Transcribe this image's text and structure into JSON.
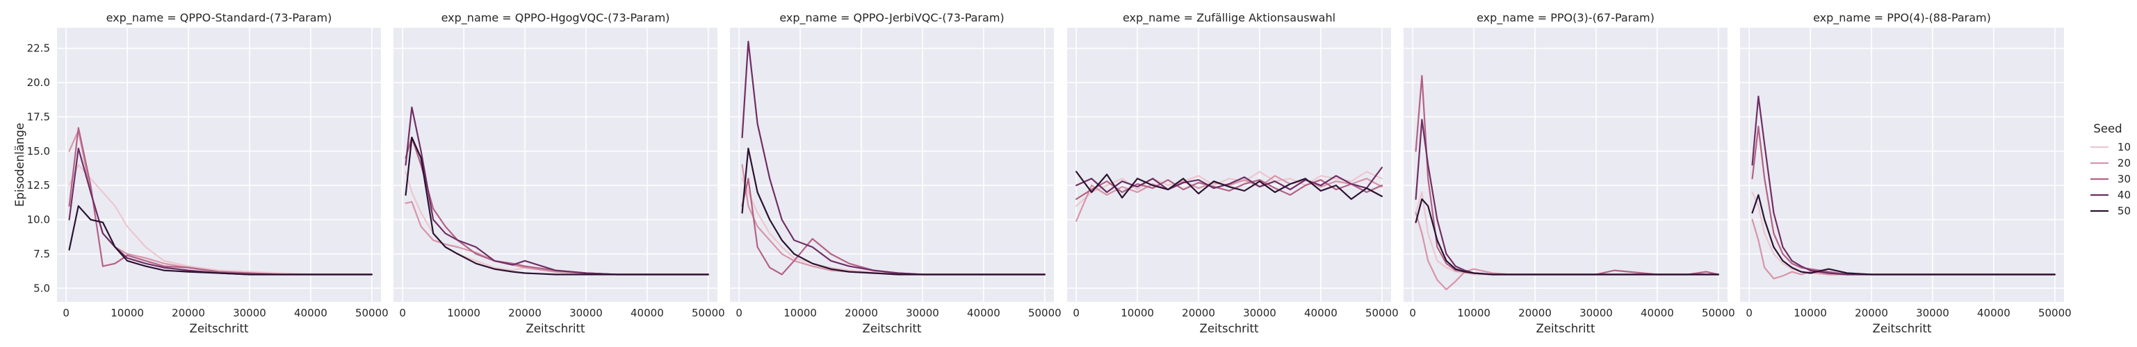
{
  "figure": {
    "xlabel": "Zeitschritt",
    "ylabel": "Episodenlänge"
  },
  "legend": {
    "title": "Seed",
    "entries": [
      {
        "label": "10",
        "color": "#ecc7cf"
      },
      {
        "label": "20",
        "color": "#d794a8"
      },
      {
        "label": "30",
        "color": "#b36285"
      },
      {
        "label": "40",
        "color": "#6e2e64"
      },
      {
        "label": "50",
        "color": "#2a1231"
      }
    ],
    "placement": "right"
  },
  "chart_data": [
    {
      "type": "line",
      "title": "exp_name = QPPO-Standard-(73-Param)",
      "xlabel": "Zeitschritt",
      "ylabel": "Episodenlänge",
      "xlim": [
        -1500,
        51500
      ],
      "ylim": [
        4.0,
        24.0
      ],
      "xticks": [
        0,
        10000,
        20000,
        30000,
        40000,
        50000
      ],
      "yticks": [
        5.0,
        7.5,
        10.0,
        12.5,
        15.0,
        17.5,
        20.0,
        22.5
      ],
      "grid": true,
      "x": [
        500,
        2000,
        4000,
        6000,
        8000,
        10000,
        13000,
        16000,
        20000,
        25000,
        30000,
        35000,
        40000,
        45000,
        50000
      ],
      "series": [
        {
          "name": "10",
          "values": [
            12.5,
            14.0,
            13.0,
            12.0,
            11.0,
            9.5,
            8.0,
            7.0,
            6.6,
            6.3,
            6.2,
            6.1,
            6.0,
            6.0,
            6.0
          ]
        },
        {
          "name": "20",
          "values": [
            15.0,
            16.5,
            12.0,
            9.0,
            8.0,
            7.5,
            7.2,
            6.8,
            6.5,
            6.2,
            6.1,
            6.0,
            6.0,
            6.0,
            6.0
          ]
        },
        {
          "name": "30",
          "values": [
            11.0,
            16.7,
            12.5,
            6.6,
            6.8,
            7.4,
            7.0,
            6.6,
            6.5,
            6.2,
            6.1,
            6.0,
            6.0,
            6.0,
            6.0
          ]
        },
        {
          "name": "40",
          "values": [
            10.0,
            15.2,
            12.0,
            9.0,
            8.0,
            7.2,
            6.8,
            6.5,
            6.3,
            6.1,
            6.0,
            6.0,
            6.0,
            6.0,
            6.0
          ]
        },
        {
          "name": "50",
          "values": [
            7.8,
            11.0,
            10.0,
            9.8,
            8.0,
            7.0,
            6.6,
            6.3,
            6.2,
            6.1,
            6.0,
            6.0,
            6.0,
            6.0,
            6.0
          ]
        }
      ]
    },
    {
      "type": "line",
      "title": "exp_name = QPPO-HgogVQC-(73-Param)",
      "xlabel": "Zeitschritt",
      "ylabel": "",
      "xlim": [
        -1500,
        51500
      ],
      "ylim": [
        4.0,
        24.0
      ],
      "xticks": [
        0,
        10000,
        20000,
        30000,
        40000,
        50000
      ],
      "yticks": [
        5.0,
        7.5,
        10.0,
        12.5,
        15.0,
        17.5,
        20.0,
        22.5
      ],
      "grid": true,
      "x": [
        500,
        1500,
        3000,
        5000,
        7000,
        9000,
        12000,
        15000,
        18000,
        20000,
        25000,
        30000,
        35000,
        40000,
        45000,
        50000
      ],
      "series": [
        {
          "name": "10",
          "values": [
            13.5,
            12.0,
            10.5,
            9.0,
            8.0,
            7.5,
            7.0,
            6.5,
            6.3,
            6.5,
            6.2,
            6.1,
            6.0,
            6.0,
            6.0,
            6.0
          ]
        },
        {
          "name": "20",
          "values": [
            11.2,
            11.3,
            9.5,
            8.5,
            8.2,
            8.0,
            7.6,
            7.0,
            6.7,
            6.5,
            6.2,
            6.1,
            6.0,
            6.0,
            6.0,
            6.0
          ]
        },
        {
          "name": "30",
          "values": [
            14.5,
            16.0,
            14.0,
            10.8,
            9.5,
            8.5,
            7.5,
            7.0,
            6.8,
            6.6,
            6.3,
            6.1,
            6.0,
            6.0,
            6.0,
            6.0
          ]
        },
        {
          "name": "40",
          "values": [
            14.0,
            18.2,
            15.0,
            10.0,
            9.0,
            8.5,
            8.0,
            7.0,
            6.7,
            7.0,
            6.3,
            6.1,
            6.0,
            6.0,
            6.0,
            6.0
          ]
        },
        {
          "name": "50",
          "values": [
            11.8,
            16.0,
            14.5,
            9.0,
            8.0,
            7.5,
            6.8,
            6.4,
            6.2,
            6.1,
            6.0,
            6.0,
            6.0,
            6.0,
            6.0,
            6.0
          ]
        }
      ]
    },
    {
      "type": "line",
      "title": "exp_name = QPPO-JerbiVQC-(73-Param)",
      "xlabel": "Zeitschritt",
      "ylabel": "",
      "xlim": [
        -1500,
        51500
      ],
      "ylim": [
        4.0,
        24.0
      ],
      "xticks": [
        0,
        10000,
        20000,
        30000,
        40000,
        50000
      ],
      "yticks": [
        5.0,
        7.5,
        10.0,
        12.5,
        15.0,
        17.5,
        20.0,
        22.5
      ],
      "grid": true,
      "x": [
        500,
        1500,
        3000,
        5000,
        7000,
        9000,
        12000,
        15000,
        18000,
        22000,
        26000,
        30000,
        35000,
        40000,
        45000,
        50000
      ],
      "series": [
        {
          "name": "10",
          "values": [
            13.0,
            12.0,
            10.5,
            9.0,
            8.0,
            7.2,
            6.8,
            6.5,
            6.3,
            6.2,
            6.1,
            6.0,
            6.0,
            6.0,
            6.0,
            6.0
          ]
        },
        {
          "name": "20",
          "values": [
            14.0,
            11.0,
            9.5,
            8.5,
            7.5,
            7.0,
            6.6,
            6.3,
            6.2,
            6.1,
            6.0,
            6.0,
            6.0,
            6.0,
            6.0,
            6.0
          ]
        },
        {
          "name": "30",
          "values": [
            11.0,
            13.0,
            8.0,
            6.5,
            6.0,
            7.0,
            8.6,
            7.5,
            6.8,
            6.3,
            6.1,
            6.0,
            6.0,
            6.0,
            6.0,
            6.0
          ]
        },
        {
          "name": "40",
          "values": [
            16.0,
            23.0,
            17.0,
            13.0,
            10.0,
            8.5,
            8.0,
            7.0,
            6.6,
            6.3,
            6.1,
            6.0,
            6.0,
            6.0,
            6.0,
            6.0
          ]
        },
        {
          "name": "50",
          "values": [
            10.5,
            15.2,
            12.0,
            10.0,
            8.5,
            7.5,
            6.8,
            6.4,
            6.2,
            6.1,
            6.0,
            6.0,
            6.0,
            6.0,
            6.0,
            6.0
          ]
        }
      ]
    },
    {
      "type": "line",
      "title": "exp_name = Zufällige Aktionsauswahl",
      "xlabel": "Zeitschritt",
      "ylabel": "",
      "xlim": [
        -1500,
        51500
      ],
      "ylim": [
        4.0,
        24.0
      ],
      "xticks": [
        0,
        10000,
        20000,
        30000,
        40000,
        50000
      ],
      "yticks": [
        5.0,
        7.5,
        10.0,
        12.5,
        15.0,
        17.5,
        20.0,
        22.5
      ],
      "grid": true,
      "x": [
        0,
        2500,
        5000,
        7500,
        10000,
        12500,
        15000,
        17500,
        20000,
        22500,
        25000,
        27500,
        30000,
        32500,
        35000,
        37500,
        40000,
        42500,
        45000,
        47500,
        50000
      ],
      "series": [
        {
          "name": "10",
          "values": [
            11.0,
            12.0,
            12.5,
            13.0,
            12.2,
            13.0,
            12.5,
            12.8,
            13.2,
            12.5,
            13.0,
            12.8,
            13.5,
            12.8,
            13.0,
            12.5,
            13.2,
            13.0,
            12.8,
            13.5,
            13.0
          ]
        },
        {
          "name": "20",
          "values": [
            9.9,
            12.5,
            11.8,
            12.4,
            12.0,
            12.6,
            12.2,
            12.8,
            12.3,
            12.7,
            12.5,
            12.9,
            12.4,
            13.2,
            12.6,
            12.9,
            12.4,
            12.8,
            12.6,
            13.0,
            12.4
          ]
        },
        {
          "name": "30",
          "values": [
            11.5,
            12.2,
            12.8,
            12.0,
            12.6,
            12.3,
            12.9,
            12.2,
            12.7,
            12.4,
            12.1,
            12.6,
            12.9,
            12.3,
            11.8,
            12.5,
            12.9,
            12.2,
            12.6,
            12.0,
            12.5
          ]
        },
        {
          "name": "40",
          "values": [
            12.5,
            13.0,
            12.0,
            12.8,
            12.4,
            13.0,
            12.2,
            12.7,
            12.9,
            12.3,
            12.6,
            13.1,
            12.4,
            12.8,
            12.2,
            12.9,
            12.5,
            13.2,
            12.6,
            12.3,
            13.8
          ]
        },
        {
          "name": "50",
          "values": [
            13.5,
            12.0,
            13.3,
            11.6,
            13.0,
            12.5,
            12.2,
            13.0,
            11.9,
            12.8,
            12.4,
            12.1,
            12.8,
            12.0,
            12.6,
            13.0,
            12.1,
            12.5,
            11.5,
            12.3,
            11.7
          ]
        }
      ]
    },
    {
      "type": "line",
      "title": "exp_name = PPO(3)-(67-Param)",
      "xlabel": "Zeitschritt",
      "ylabel": "",
      "xlim": [
        -1500,
        51500
      ],
      "ylim": [
        4.0,
        24.0
      ],
      "xticks": [
        0,
        10000,
        20000,
        30000,
        40000,
        50000
      ],
      "yticks": [
        5.0,
        7.5,
        10.0,
        12.5,
        15.0,
        17.5,
        20.0,
        22.5
      ],
      "grid": true,
      "x": [
        500,
        1500,
        2500,
        4000,
        5500,
        7000,
        8500,
        10000,
        13000,
        16000,
        20000,
        25000,
        30000,
        33000,
        40000,
        45000,
        48000,
        50000
      ],
      "series": [
        {
          "name": "10",
          "values": [
            10.5,
            12.0,
            9.0,
            7.0,
            6.5,
            6.2,
            6.1,
            6.0,
            6.0,
            6.0,
            6.0,
            6.0,
            6.0,
            6.0,
            6.0,
            6.0,
            6.0,
            6.0
          ]
        },
        {
          "name": "20",
          "values": [
            10.5,
            9.0,
            7.0,
            5.6,
            4.9,
            5.5,
            6.2,
            6.4,
            6.1,
            6.0,
            6.0,
            6.0,
            6.0,
            6.0,
            6.0,
            6.0,
            6.0,
            6.0
          ]
        },
        {
          "name": "30",
          "values": [
            15.0,
            20.5,
            13.0,
            8.0,
            6.8,
            6.3,
            6.2,
            6.1,
            6.0,
            6.0,
            6.0,
            6.0,
            6.0,
            6.3,
            6.0,
            6.0,
            6.2,
            6.0
          ]
        },
        {
          "name": "40",
          "values": [
            11.5,
            17.3,
            14.0,
            10.0,
            7.5,
            6.6,
            6.3,
            6.1,
            6.0,
            6.0,
            6.0,
            6.0,
            6.0,
            6.0,
            6.0,
            6.0,
            6.0,
            6.0
          ]
        },
        {
          "name": "50",
          "values": [
            9.8,
            11.5,
            11.0,
            8.5,
            7.0,
            6.4,
            6.2,
            6.1,
            6.0,
            6.0,
            6.0,
            6.0,
            6.0,
            6.0,
            6.0,
            6.0,
            6.0,
            6.0
          ]
        }
      ]
    },
    {
      "type": "line",
      "title": "exp_name = PPO(4)-(88-Param)",
      "xlabel": "Zeitschritt",
      "ylabel": "",
      "xlim": [
        -1500,
        51500
      ],
      "ylim": [
        4.0,
        24.0
      ],
      "xticks": [
        0,
        10000,
        20000,
        30000,
        40000,
        50000
      ],
      "yticks": [
        5.0,
        7.5,
        10.0,
        12.5,
        15.0,
        17.5,
        20.0,
        22.5
      ],
      "grid": true,
      "x": [
        500,
        1500,
        2500,
        4000,
        5500,
        7000,
        8500,
        10000,
        13000,
        16000,
        20000,
        25000,
        30000,
        35000,
        40000,
        45000,
        50000
      ],
      "series": [
        {
          "name": "10",
          "values": [
            12.0,
            11.0,
            9.0,
            7.5,
            6.8,
            6.4,
            6.2,
            6.1,
            6.0,
            6.0,
            6.0,
            6.0,
            6.0,
            6.0,
            6.0,
            6.0,
            6.0
          ]
        },
        {
          "name": "20",
          "values": [
            10.0,
            8.5,
            6.5,
            5.7,
            5.9,
            6.2,
            6.0,
            6.2,
            6.0,
            6.0,
            6.0,
            6.0,
            6.0,
            6.0,
            6.0,
            6.0,
            6.0
          ]
        },
        {
          "name": "30",
          "values": [
            13.0,
            16.8,
            13.0,
            9.0,
            7.5,
            6.8,
            6.5,
            6.4,
            6.2,
            6.0,
            6.0,
            6.0,
            6.0,
            6.0,
            6.0,
            6.0,
            6.0
          ]
        },
        {
          "name": "40",
          "values": [
            14.0,
            19.0,
            15.5,
            10.5,
            8.0,
            7.0,
            6.6,
            6.3,
            6.1,
            6.0,
            6.0,
            6.0,
            6.0,
            6.0,
            6.0,
            6.0,
            6.0
          ]
        },
        {
          "name": "50",
          "values": [
            10.5,
            11.8,
            10.0,
            8.0,
            7.0,
            6.5,
            6.2,
            6.1,
            6.4,
            6.1,
            6.0,
            6.0,
            6.0,
            6.0,
            6.0,
            6.0,
            6.0
          ]
        }
      ]
    }
  ]
}
